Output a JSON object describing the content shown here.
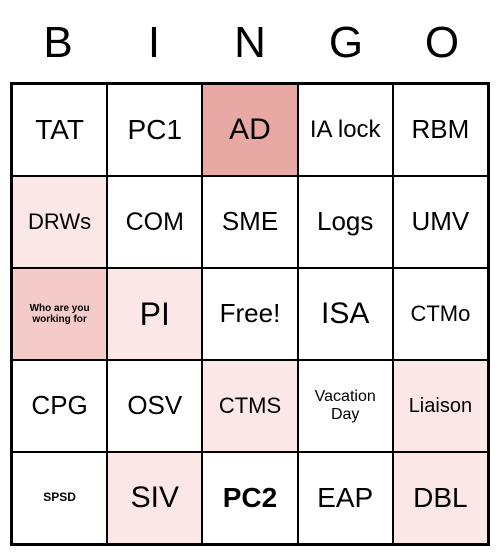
{
  "header": {
    "letters": [
      "B",
      "I",
      "N",
      "G",
      "O"
    ]
  },
  "colors": {
    "background_default": "#ffffff",
    "background_light_pink": "#fbe7e6",
    "background_medium_pink": "#f4cbc9",
    "background_dark_pink": "#e8a9a5",
    "border": "#000000",
    "text": "#000000"
  },
  "grid": {
    "rows": 5,
    "cols": 5,
    "cells": [
      [
        {
          "text": "TAT",
          "bg": "#ffffff",
          "fontSize": 28,
          "fontWeight": "normal"
        },
        {
          "text": "PC1",
          "bg": "#ffffff",
          "fontSize": 28,
          "fontWeight": "normal"
        },
        {
          "text": "AD",
          "bg": "#e8a9a5",
          "fontSize": 30,
          "fontWeight": "normal"
        },
        {
          "text": "IA lock",
          "bg": "#ffffff",
          "fontSize": 24,
          "fontWeight": "normal"
        },
        {
          "text": "RBM",
          "bg": "#ffffff",
          "fontSize": 26,
          "fontWeight": "normal"
        }
      ],
      [
        {
          "text": "DRWs",
          "bg": "#fbe7e6",
          "fontSize": 22,
          "fontWeight": "normal"
        },
        {
          "text": "COM",
          "bg": "#ffffff",
          "fontSize": 25,
          "fontWeight": "normal"
        },
        {
          "text": "SME",
          "bg": "#ffffff",
          "fontSize": 26,
          "fontWeight": "normal"
        },
        {
          "text": "Logs",
          "bg": "#ffffff",
          "fontSize": 26,
          "fontWeight": "normal"
        },
        {
          "text": "UMV",
          "bg": "#ffffff",
          "fontSize": 26,
          "fontWeight": "normal"
        }
      ],
      [
        {
          "text": "Who are you working for",
          "bg": "#f4cbc9",
          "fontSize": 10,
          "fontWeight": "bold"
        },
        {
          "text": "PI",
          "bg": "#fbe7e6",
          "fontSize": 32,
          "fontWeight": "normal"
        },
        {
          "text": "Free!",
          "bg": "#ffffff",
          "fontSize": 26,
          "fontWeight": "normal"
        },
        {
          "text": "ISA",
          "bg": "#ffffff",
          "fontSize": 30,
          "fontWeight": "normal"
        },
        {
          "text": "CTMo",
          "bg": "#ffffff",
          "fontSize": 22,
          "fontWeight": "normal"
        }
      ],
      [
        {
          "text": "CPG",
          "bg": "#ffffff",
          "fontSize": 26,
          "fontWeight": "normal"
        },
        {
          "text": "OSV",
          "bg": "#ffffff",
          "fontSize": 26,
          "fontWeight": "normal"
        },
        {
          "text": "CTMS",
          "bg": "#fbe7e6",
          "fontSize": 22,
          "fontWeight": "normal"
        },
        {
          "text": "Vacation Day",
          "bg": "#ffffff",
          "fontSize": 16,
          "fontWeight": "normal"
        },
        {
          "text": "Liaison",
          "bg": "#fbe7e6",
          "fontSize": 20,
          "fontWeight": "normal"
        }
      ],
      [
        {
          "text": "SPSD",
          "bg": "#ffffff",
          "fontSize": 12,
          "fontWeight": "bold"
        },
        {
          "text": "SIV",
          "bg": "#fbe7e6",
          "fontSize": 30,
          "fontWeight": "normal"
        },
        {
          "text": "PC2",
          "bg": "#ffffff",
          "fontSize": 28,
          "fontWeight": "bold"
        },
        {
          "text": "EAP",
          "bg": "#ffffff",
          "fontSize": 28,
          "fontWeight": "normal"
        },
        {
          "text": "DBL",
          "bg": "#fbe7e6",
          "fontSize": 28,
          "fontWeight": "normal"
        }
      ]
    ]
  }
}
